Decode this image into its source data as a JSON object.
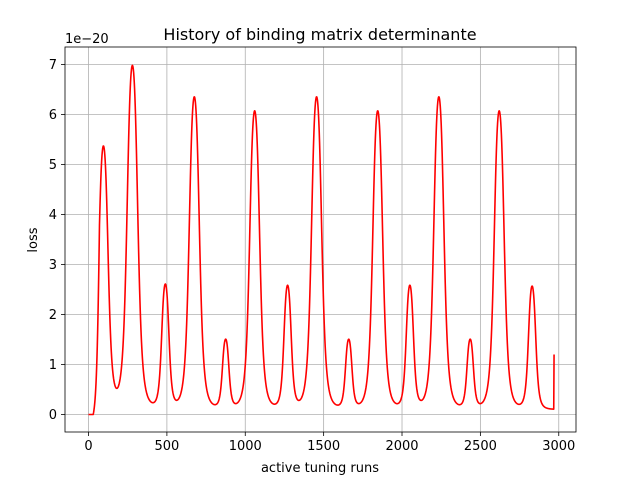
{
  "chart_data": {
    "type": "line",
    "title": "History of binding matrix determinante",
    "xlabel": "active tuning runs",
    "ylabel": "loss",
    "y_offset_text": "1e−20",
    "xlim": [
      -150,
      3110
    ],
    "ylim": [
      -0.35,
      7.35
    ],
    "x_ticks": [
      0,
      500,
      1000,
      1500,
      2000,
      2500,
      3000
    ],
    "x_tick_labels": [
      "0",
      "500",
      "1000",
      "1500",
      "2000",
      "2500",
      "3000"
    ],
    "y_ticks": [
      0,
      1,
      2,
      3,
      4,
      5,
      6,
      7
    ],
    "y_tick_labels": [
      "0",
      "1",
      "2",
      "3",
      "4",
      "5",
      "6",
      "7"
    ],
    "grid": true,
    "series": [
      {
        "color": "#ff0000",
        "flat_until": 30,
        "baseline": 0.1,
        "x_end": 2970,
        "end_value": 1.2,
        "peaks": [
          {
            "x": 95,
            "y": 5.35
          },
          {
            "x": 280,
            "y": 6.97
          },
          {
            "x": 490,
            "y": 2.58
          },
          {
            "x": 675,
            "y": 6.35
          },
          {
            "x": 875,
            "y": 1.48
          },
          {
            "x": 1060,
            "y": 6.07
          },
          {
            "x": 1270,
            "y": 2.56
          },
          {
            "x": 1455,
            "y": 6.35
          },
          {
            "x": 1660,
            "y": 1.48
          },
          {
            "x": 1845,
            "y": 6.07
          },
          {
            "x": 2050,
            "y": 2.56
          },
          {
            "x": 2235,
            "y": 6.35
          },
          {
            "x": 2435,
            "y": 1.48
          },
          {
            "x": 2620,
            "y": 6.07
          },
          {
            "x": 2830,
            "y": 2.56
          }
        ]
      }
    ]
  }
}
